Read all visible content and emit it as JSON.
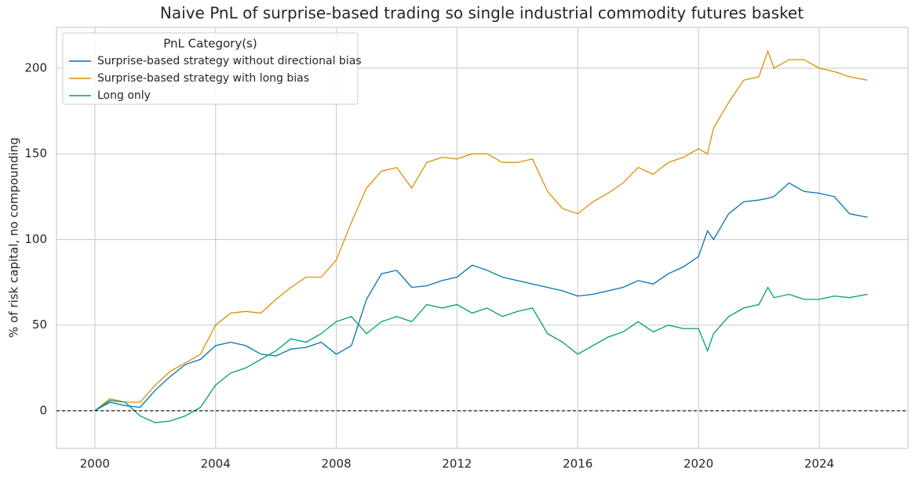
{
  "chart_data": {
    "type": "line",
    "title": "Naive PnL of surprise-based trading so single industrial commodity futures basket",
    "y_label": "% of risk capital, no compounding",
    "legend_title": "PnL Category(s)",
    "legend_position": "upper-left",
    "grid": true,
    "hline": 0,
    "xlim": [
      1998.73,
      2026.94
    ],
    "ylim": [
      -22,
      223.8
    ],
    "xticks": [
      2000,
      2004,
      2008,
      2012,
      2016,
      2020,
      2024
    ],
    "yticks": [
      0,
      50,
      100,
      150,
      200
    ],
    "x": [
      2000,
      2000.5,
      2001,
      2001.5,
      2002,
      2002.5,
      2003,
      2003.5,
      2004,
      2004.5,
      2005,
      2005.5,
      2006,
      2006.5,
      2007,
      2007.5,
      2008,
      2008.5,
      2009,
      2009.5,
      2010,
      2010.5,
      2011,
      2011.5,
      2012,
      2012.5,
      2013,
      2013.5,
      2014,
      2014.5,
      2015,
      2015.5,
      2016,
      2016.5,
      2017,
      2017.5,
      2018,
      2018.5,
      2019,
      2019.5,
      2020,
      2020.3,
      2020.5,
      2021,
      2021.5,
      2022,
      2022.3,
      2022.5,
      2023,
      2023.5,
      2024,
      2024.5,
      2025,
      2025.6
    ],
    "series": [
      {
        "name": "Surprise-based strategy without directional bias",
        "color": "#0173b2",
        "values": [
          0,
          5,
          3,
          2,
          12,
          20,
          27,
          30,
          38,
          40,
          38,
          33,
          32,
          36,
          37,
          40,
          33,
          38,
          65,
          80,
          82,
          72,
          73,
          76,
          78,
          85,
          82,
          78,
          76,
          74,
          72,
          70,
          67,
          68,
          70,
          72,
          76,
          74,
          80,
          84,
          90,
          105,
          100,
          115,
          122,
          123,
          124,
          125,
          133,
          128,
          127,
          125,
          115,
          113
        ]
      },
      {
        "name": "Surprise-based strategy with long bias",
        "color": "#de8f05",
        "values": [
          0,
          7,
          5,
          5,
          15,
          23,
          28,
          33,
          50,
          57,
          58,
          57,
          65,
          72,
          78,
          78,
          88,
          110,
          130,
          140,
          142,
          130,
          145,
          148,
          147,
          150,
          150,
          145,
          145,
          147,
          128,
          118,
          115,
          122,
          127,
          133,
          142,
          138,
          145,
          148,
          153,
          150,
          165,
          180,
          193,
          195,
          210,
          200,
          205,
          205,
          200,
          198,
          195,
          193
        ]
      },
      {
        "name": "Long only",
        "color": "#029e73",
        "values": [
          0,
          6,
          5,
          -3,
          -7,
          -6,
          -3,
          2,
          15,
          22,
          25,
          30,
          35,
          42,
          40,
          45,
          52,
          55,
          45,
          52,
          55,
          52,
          62,
          60,
          62,
          57,
          60,
          55,
          58,
          60,
          45,
          40,
          33,
          38,
          43,
          46,
          52,
          46,
          50,
          48,
          48,
          35,
          45,
          55,
          60,
          62,
          72,
          66,
          68,
          65,
          65,
          67,
          66,
          68
        ]
      }
    ]
  }
}
